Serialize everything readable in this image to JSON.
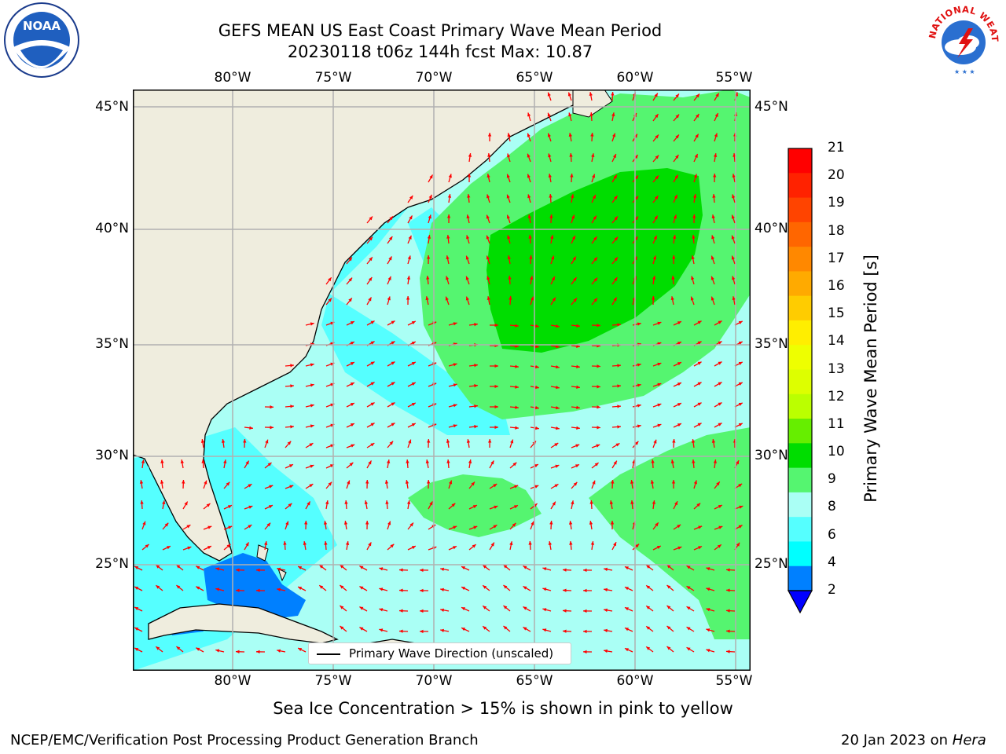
{
  "header": {
    "title_line1": "GEFS MEAN US East Coast Primary Wave Mean Period",
    "title_line2": "20230118 t06z 144h fcst   Max: 10.87"
  },
  "logos": {
    "noaa": {
      "text": "NOAA",
      "icon": "noaa-logo-icon"
    },
    "nws": {
      "text": "NATIONAL WEATHER SERVICE",
      "icon": "nws-logo-icon"
    }
  },
  "map": {
    "lon_ticks": [
      "80°W",
      "75°W",
      "70°W",
      "65°W",
      "60°W",
      "55°W"
    ],
    "lat_ticks": [
      "45°N",
      "40°N",
      "35°N",
      "30°N",
      "25°N"
    ],
    "legend_text": "Primary Wave Direction (unscaled)",
    "colors": {
      "land": "#efedde",
      "arrow": "#ff0000",
      "grid": "#b0b0b0"
    }
  },
  "colorbar": {
    "label": "Primary Wave Mean Period [s]",
    "ticks": [
      "21",
      "20",
      "19",
      "18",
      "17",
      "16",
      "15",
      "14",
      "13",
      "12",
      "11",
      "10",
      "9",
      "8",
      "6",
      "4",
      "2"
    ],
    "colors": [
      "#ff0000",
      "#ff2200",
      "#ff4400",
      "#ff6600",
      "#ff8800",
      "#ffaa00",
      "#ffcc00",
      "#ffee00",
      "#eeff00",
      "#ddff00",
      "#bbff00",
      "#66ee00",
      "#00dd00",
      "#55f570",
      "#aafff5",
      "#55ffff",
      "#00ffff",
      "#0080ff",
      "#0000ff"
    ]
  },
  "caption": "Sea Ice Concentration > 15% is shown in pink to yellow",
  "footer": {
    "left": "NCEP/EMC/Verification Post Processing Product Generation Branch",
    "right_date": "20 Jan 2023 on ",
    "right_host": "Hera"
  }
}
